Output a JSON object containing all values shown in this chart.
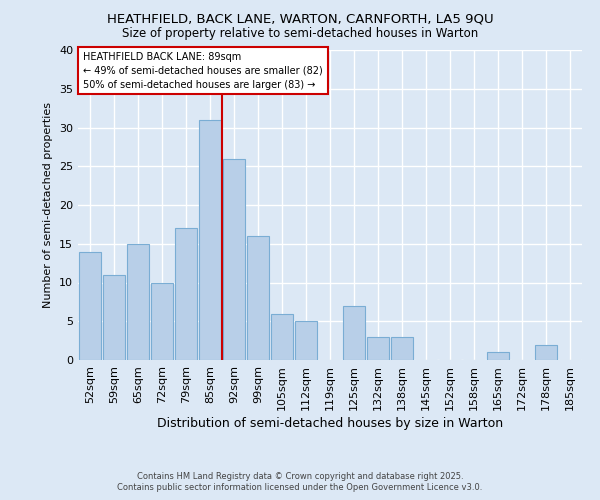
{
  "title": "HEATHFIELD, BACK LANE, WARTON, CARNFORTH, LA5 9QU",
  "subtitle": "Size of property relative to semi-detached houses in Warton",
  "xlabel": "Distribution of semi-detached houses by size in Warton",
  "ylabel": "Number of semi-detached properties",
  "categories": [
    "52sqm",
    "59sqm",
    "65sqm",
    "72sqm",
    "79sqm",
    "85sqm",
    "92sqm",
    "99sqm",
    "105sqm",
    "112sqm",
    "119sqm",
    "125sqm",
    "132sqm",
    "138sqm",
    "145sqm",
    "152sqm",
    "158sqm",
    "165sqm",
    "172sqm",
    "178sqm",
    "185sqm"
  ],
  "values": [
    14,
    11,
    15,
    10,
    17,
    31,
    26,
    16,
    6,
    5,
    0,
    7,
    3,
    3,
    0,
    0,
    0,
    1,
    0,
    2,
    0
  ],
  "bar_color": "#b8cfe8",
  "bar_edge_color": "#7aadd4",
  "background_color": "#dce8f5",
  "grid_color": "#ffffff",
  "vline_x": 5.5,
  "vline_color": "#cc0000",
  "annotation_title": "HEATHFIELD BACK LANE: 89sqm",
  "annotation_line1": "← 49% of semi-detached houses are smaller (82)",
  "annotation_line2": "50% of semi-detached houses are larger (83) →",
  "annotation_box_color": "#ffffff",
  "annotation_box_edge": "#cc0000",
  "ylim": [
    0,
    40
  ],
  "yticks": [
    0,
    5,
    10,
    15,
    20,
    25,
    30,
    35,
    40
  ],
  "footer1": "Contains HM Land Registry data © Crown copyright and database right 2025.",
  "footer2": "Contains public sector information licensed under the Open Government Licence v3.0."
}
